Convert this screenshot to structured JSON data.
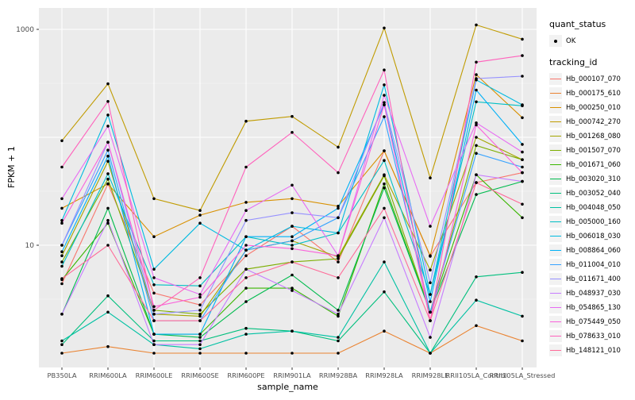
{
  "axis": {
    "x_title": "sample_name",
    "y_title": "FPKM + 1",
    "y_tick_labels": [
      "10",
      "1000"
    ]
  },
  "legend": {
    "quant_status": {
      "title": "quant_status",
      "items": [
        {
          "label": "OK"
        }
      ]
    },
    "tracking": {
      "title": "tracking_id"
    }
  },
  "style": {
    "panel_bg": "#EBEBEB",
    "grid_color": "#FFFFFF",
    "point_color": "#000000",
    "tick_color": "#333333",
    "tick_label_color": "#4D4D4D"
  },
  "chart_data": {
    "type": "line",
    "title": "",
    "xlabel": "sample_name",
    "ylabel": "FPKM + 1",
    "y_scale": "log10",
    "ylim": [
      1,
      1300
    ],
    "y_ticks": [
      10,
      1000
    ],
    "y_major_gridlines": [
      10,
      100,
      1000
    ],
    "y_minor_gridlines": [
      3.162,
      31.62,
      316.2
    ],
    "grid": true,
    "legend_position": "right",
    "point_marker": "black dot, quant_status OK",
    "categories": [
      "PB350LA",
      "RRIM600LA",
      "RRIM600LE",
      "RRIM600SE",
      "RRIM600PE",
      "RRIM901LA",
      "RRIM928BA",
      "RRIM928LA",
      "RRIM928LE",
      "RRII105LA_Control",
      "RRII105LA_Stressed"
    ],
    "series": [
      {
        "name": "Hb_000107_070",
        "color": "#F8766D",
        "values": [
          4.4,
          37,
          3.6,
          2.8,
          8,
          15,
          7,
          75,
          7.9,
          38,
          47
        ]
      },
      {
        "name": "Hb_000175_610",
        "color": "#EA8331",
        "values": [
          1.0,
          1.15,
          1.0,
          1.0,
          1.0,
          1.0,
          1.0,
          1.6,
          1.0,
          1.8,
          1.3
        ]
      },
      {
        "name": "Hb_000250_010",
        "color": "#D89000",
        "values": [
          22,
          37,
          12,
          19,
          25,
          27,
          23,
          75,
          8,
          380,
          152
        ]
      },
      {
        "name": "Hb_000742_270",
        "color": "#C09B00",
        "values": [
          93,
          313,
          27,
          21,
          141,
          156,
          81,
          1030,
          42,
          1100,
          810
        ]
      },
      {
        "name": "Hb_001268_080",
        "color": "#A3A500",
        "values": [
          8,
          60,
          2.3,
          2.2,
          9,
          11,
          7.8,
          45,
          5.9,
          100,
          62
        ]
      },
      {
        "name": "Hb_001507_070",
        "color": "#7CAE00",
        "values": [
          7,
          41,
          2.5,
          2.3,
          6,
          7,
          7.5,
          44,
          2.4,
          84,
          62
        ]
      },
      {
        "name": "Hb_001671_060",
        "color": "#39B600",
        "values": [
          4.8,
          16,
          1.5,
          1.5,
          4,
          4,
          2.2,
          37,
          2.4,
          45,
          18
        ]
      },
      {
        "name": "Hb_003020_310",
        "color": "#00BB4E",
        "values": [
          2.3,
          22,
          1.5,
          1.4,
          3,
          5.3,
          2.5,
          34,
          2.4,
          29.5,
          39
        ]
      },
      {
        "name": "Hb_003052_040",
        "color": "#00BF7D",
        "values": [
          1.2,
          3.4,
          1.3,
          1.3,
          1.7,
          1.6,
          1.3,
          3.7,
          1.0,
          5.1,
          5.6
        ]
      },
      {
        "name": "Hb_004048_050",
        "color": "#00C1A3",
        "values": [
          1.3,
          2.4,
          1.2,
          1.1,
          1.5,
          1.6,
          1.4,
          7,
          1.0,
          3.1,
          2.2
        ]
      },
      {
        "name": "Hb_005000_160",
        "color": "#00BFC4",
        "values": [
          6.4,
          46,
          4.3,
          4.2,
          12,
          10,
          13,
          61,
          3.5,
          213,
          196
        ]
      },
      {
        "name": "Hb_006018_030",
        "color": "#00BAE0",
        "values": [
          17,
          161,
          6,
          16,
          9,
          15,
          13,
          306,
          3.5,
          340,
          200
        ]
      },
      {
        "name": "Hb_008864_060",
        "color": "#00B0F6",
        "values": [
          8.7,
          67,
          1.5,
          1.5,
          12,
          12,
          22,
          200,
          3.0,
          274,
          86
        ]
      },
      {
        "name": "Hb_011004_010",
        "color": "#35A2FF",
        "values": [
          10,
          76,
          2.0,
          2.0,
          9,
          11,
          18,
          155,
          2.4,
          71,
          53
        ]
      },
      {
        "name": "Hb_011671_400",
        "color": "#9590FF",
        "values": [
          10,
          90,
          2.3,
          2.5,
          17,
          20,
          18,
          210,
          4.5,
          350,
          368
        ]
      },
      {
        "name": "Hb_048937_030",
        "color": "#C77CFF",
        "values": [
          2.3,
          17,
          1.2,
          1.2,
          6,
          3.8,
          2.3,
          18,
          1.4,
          45,
          39
        ]
      },
      {
        "name": "Hb_054865_130",
        "color": "#E76BF3",
        "values": [
          27,
          127,
          5,
          3.5,
          21,
          36,
          8,
          245,
          15,
          136,
          73
        ]
      },
      {
        "name": "Hb_075449_050",
        "color": "#FA62DB",
        "values": [
          16,
          90,
          2.7,
          3.3,
          10,
          9.3,
          8,
          200,
          2.0,
          130,
          47
        ]
      },
      {
        "name": "Hb_078633_010",
        "color": "#FF62BC",
        "values": [
          53,
          215,
          2.5,
          5,
          53,
          111,
          47,
          420,
          2.0,
          497,
          571
        ]
      },
      {
        "name": "Hb_148121_010",
        "color": "#FF6A98",
        "values": [
          4.9,
          10,
          2.0,
          2.0,
          5,
          7,
          5,
          22,
          2.0,
          38,
          24
        ]
      }
    ]
  }
}
